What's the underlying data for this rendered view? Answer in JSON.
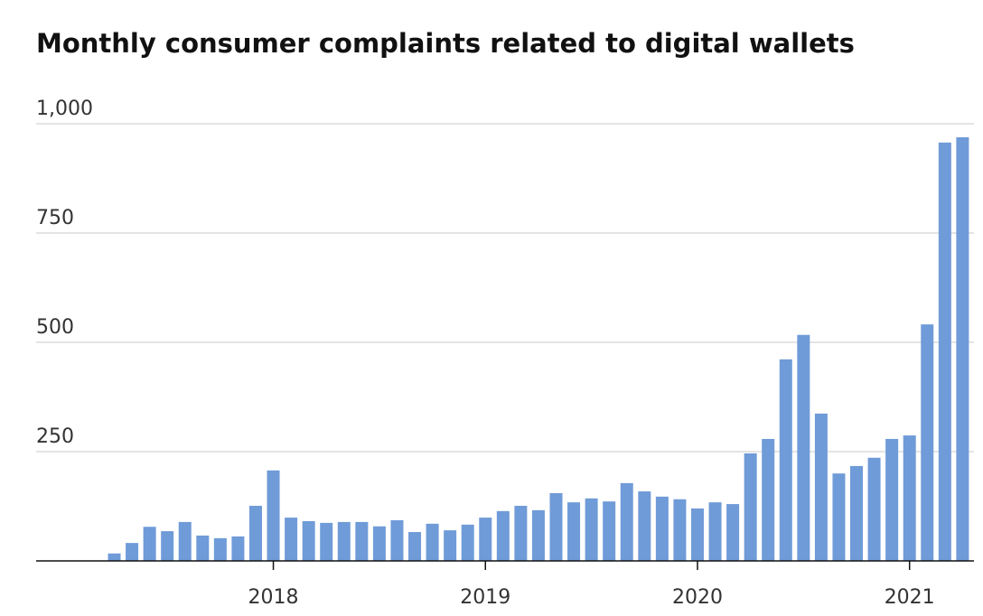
{
  "chart_data": {
    "type": "bar",
    "title": "Monthly consumer complaints related to digital wallets",
    "categories": [
      null,
      null,
      null,
      null,
      null,
      null,
      null,
      null,
      null,
      "2018",
      null,
      null,
      null,
      null,
      null,
      null,
      null,
      null,
      null,
      null,
      null,
      "2019",
      null,
      null,
      null,
      null,
      null,
      null,
      null,
      null,
      null,
      null,
      null,
      "2020",
      null,
      null,
      null,
      null,
      null,
      null,
      null,
      null,
      null,
      null,
      null,
      "2021",
      null,
      null,
      null
    ],
    "values": [
      17,
      41,
      78,
      68,
      89,
      58,
      52,
      56,
      126,
      207,
      99,
      91,
      87,
      89,
      89,
      79,
      93,
      66,
      85,
      70,
      83,
      99,
      114,
      126,
      116,
      155,
      134,
      143,
      136,
      178,
      159,
      147,
      141,
      120,
      134,
      130,
      246,
      279,
      461,
      517,
      337,
      200,
      217,
      236,
      279,
      287,
      541,
      957,
      969
    ],
    "color": "#6f9bd8",
    "ylim": [
      0,
      1000
    ],
    "yticks": [
      250,
      500,
      750,
      {
        "value": 1000,
        "label": "1,000"
      }
    ],
    "grid": true
  }
}
